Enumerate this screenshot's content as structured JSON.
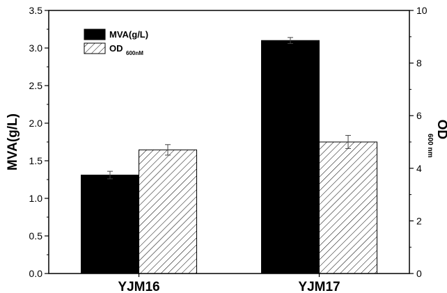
{
  "chart_data": {
    "type": "bar",
    "categories": [
      "YJM16",
      "YJM17"
    ],
    "series": [
      {
        "name": "MVA(g/L)",
        "axis": "left",
        "values": [
          1.31,
          3.1
        ],
        "errors": [
          0.05,
          0.04
        ],
        "fill": "solid",
        "color": "#000000"
      },
      {
        "name": "OD600nM",
        "name_main": "OD",
        "name_sub": "600nM",
        "axis": "right",
        "values": [
          4.7,
          5.0
        ],
        "errors": [
          0.2,
          0.25
        ],
        "fill": "hatched",
        "color": "#ffffff"
      }
    ],
    "ylabel": "MVA(g/L)",
    "ylim": [
      0,
      3.5
    ],
    "yticks": [
      "0.0",
      "0.5",
      "1.0",
      "1.5",
      "2.0",
      "2.5",
      "3.0",
      "3.5"
    ],
    "y2label_main": "OD",
    "y2label_sub": "600 nm",
    "y2lim": [
      0,
      10
    ],
    "y2ticks": [
      "0",
      "2",
      "4",
      "6",
      "8",
      "10"
    ],
    "grid": false,
    "legend": "top-left"
  }
}
